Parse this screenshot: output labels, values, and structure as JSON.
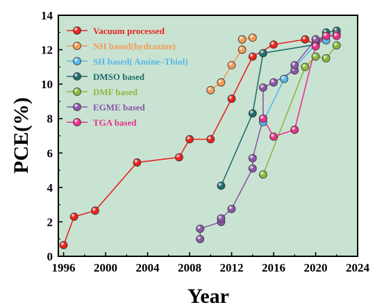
{
  "chart_data": {
    "type": "line",
    "xlabel": "Year",
    "ylabel": "PCE(%)",
    "xlim": [
      1995.5,
      2024
    ],
    "ylim": [
      0,
      14
    ],
    "x_ticks": [
      "1996",
      "2000",
      "2004",
      "2008",
      "2012",
      "2016",
      "2020",
      "2024"
    ],
    "y_ticks": [
      "0",
      "2",
      "4",
      "6",
      "8",
      "10",
      "12",
      "14"
    ],
    "legend_position": "top-left",
    "plot_background": "#c9e3d3",
    "series": [
      {
        "name": "Vacuum processed",
        "color": "#e8231d",
        "text_color": "#e8231d",
        "points": [
          [
            1996,
            0.65
          ],
          [
            1997,
            2.3
          ],
          [
            1999,
            2.65
          ],
          [
            2003,
            5.45
          ],
          [
            2007,
            5.75
          ],
          [
            2008,
            6.8
          ],
          [
            2010,
            6.8
          ],
          [
            2012,
            9.15
          ],
          [
            2014,
            11.6
          ],
          [
            2016,
            12.3
          ],
          [
            2019,
            12.6
          ],
          [
            2020,
            12.3
          ],
          [
            2021,
            12.8
          ]
        ]
      },
      {
        "name": "NH based(hydrazine)",
        "color": "#f39a55",
        "text_color": "#f39a55",
        "points": [
          [
            2010,
            9.65
          ],
          [
            2011,
            10.1
          ],
          [
            2012,
            11.1
          ],
          [
            2013,
            12.0
          ],
          [
            2013,
            12.6
          ],
          [
            2014,
            12.7
          ]
        ]
      },
      {
        "name": "SH based( Amine–Thiol)",
        "color": "#5ab6e6",
        "text_color": "#5ab6e6",
        "points": [
          [
            2015,
            7.8
          ],
          [
            2017,
            10.3
          ],
          [
            2020,
            12.3
          ],
          [
            2021,
            12.55
          ]
        ]
      },
      {
        "name": "DMSO based",
        "color": "#1f6e6a",
        "text_color": "#1f6e6a",
        "points": [
          [
            2011,
            4.1
          ],
          [
            2014,
            8.3
          ],
          [
            2015,
            11.8
          ],
          [
            2020,
            12.3
          ],
          [
            2021,
            13.0
          ],
          [
            2022,
            13.1
          ]
        ]
      },
      {
        "name": "DMF based",
        "color": "#8ab83b",
        "text_color": "#8ab83b",
        "points": [
          [
            2015,
            4.75
          ],
          [
            2019,
            11.0
          ],
          [
            2020,
            11.6
          ],
          [
            2021,
            11.5
          ],
          [
            2022,
            12.25
          ]
        ]
      },
      {
        "name": "EGME based",
        "color": "#8a57a8",
        "text_color": "#8a57a8",
        "points": [
          [
            2009,
            1.0
          ],
          [
            2009,
            1.6
          ],
          [
            2011,
            2.0
          ],
          [
            2011,
            2.2
          ],
          [
            2012,
            2.75
          ],
          [
            2014,
            5.1
          ],
          [
            2014,
            5.7
          ],
          [
            2015,
            8.0
          ],
          [
            2015,
            9.8
          ],
          [
            2016,
            10.1
          ],
          [
            2018,
            10.8
          ],
          [
            2018,
            11.1
          ],
          [
            2020,
            12.6
          ],
          [
            2022,
            12.9
          ]
        ]
      },
      {
        "name": "TGA based",
        "color": "#e8308c",
        "text_color": "#e8308c",
        "points": [
          [
            2015,
            8.0
          ],
          [
            2016,
            6.95
          ],
          [
            2018,
            7.35
          ],
          [
            2020,
            12.2
          ],
          [
            2021,
            12.8
          ],
          [
            2022,
            12.8
          ]
        ]
      }
    ]
  }
}
